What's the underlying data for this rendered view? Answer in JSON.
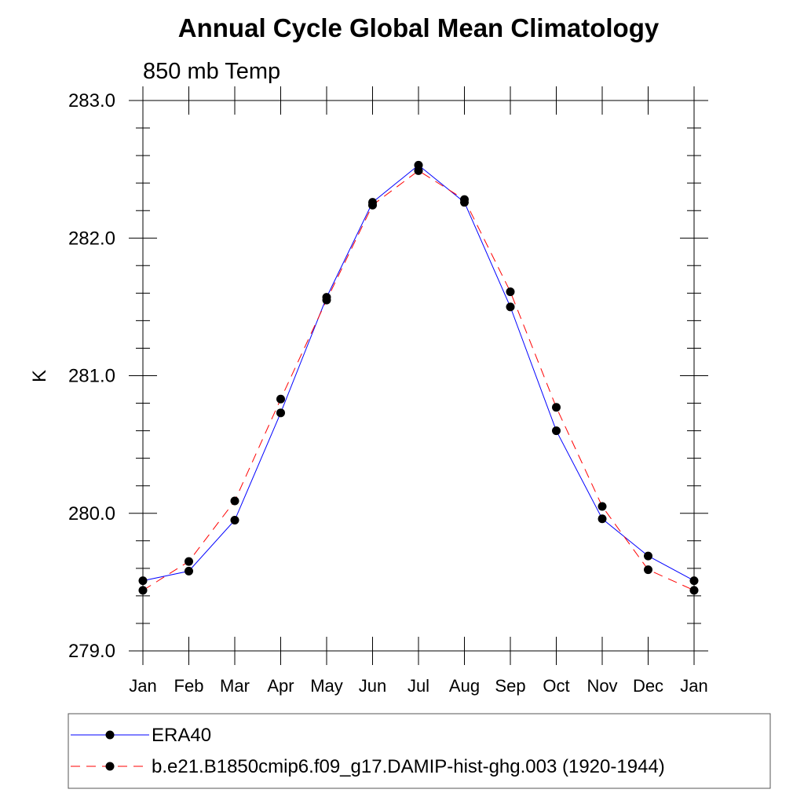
{
  "chart_data": {
    "type": "line",
    "title": "Annual Cycle Global Mean Climatology",
    "subtitle": "850 mb Temp",
    "ylabel": "K",
    "xlabel": "",
    "ylim": [
      279.0,
      283.0
    ],
    "yticks": [
      279.0,
      280.0,
      281.0,
      282.0,
      283.0
    ],
    "ytick_labels": [
      "279.0",
      "280.0",
      "281.0",
      "282.0",
      "283.0"
    ],
    "categories": [
      "Jan",
      "Feb",
      "Mar",
      "Apr",
      "May",
      "Jun",
      "Jul",
      "Aug",
      "Sep",
      "Oct",
      "Nov",
      "Dec",
      "Jan"
    ],
    "series": [
      {
        "name": "ERA40",
        "color": "#0000ff",
        "line_style": "solid",
        "marker": "filled-circle",
        "values": [
          279.51,
          279.58,
          279.95,
          280.73,
          281.57,
          282.26,
          282.53,
          282.26,
          281.5,
          280.6,
          279.96,
          279.69,
          279.51
        ]
      },
      {
        "name": "b.e21.B1850cmip6.f09_g17.DAMIP-hist-ghg.003 (1920-1944)",
        "color": "#ff0000",
        "line_style": "dashed",
        "marker": "filled-circle",
        "values": [
          279.44,
          279.65,
          280.09,
          280.83,
          281.55,
          282.24,
          282.49,
          282.28,
          281.61,
          280.77,
          280.05,
          279.59,
          279.44
        ]
      }
    ],
    "legend_position": "bottom"
  }
}
